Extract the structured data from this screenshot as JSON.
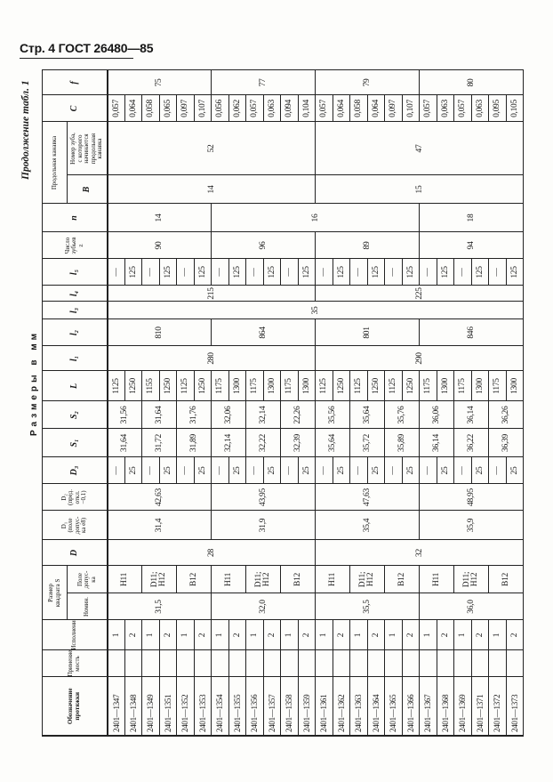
{
  "page_header": "Стр. 4 ГОСТ 26480—85",
  "continuation": "Продолжение табл. 1",
  "units": "Размеры в мм",
  "table": {
    "headers": {
      "designation": "Обозначение\nпротяжки",
      "application": "Применяе-\nмость",
      "version": "Исполнение",
      "s_group": "Размер\nквадрата S",
      "s_nom": "Номин.",
      "s_tol": "Поле\nдопус-\nка",
      "d": "D",
      "d1": "D₁\n(поле\nдопус-\nка e8)",
      "d2": "D₂\n(пред.\nоткл.\n−0,1)",
      "d3": "D₃",
      "s1": "S₁",
      "s2": "S₂",
      "L": "L",
      "l1": "l₁",
      "l2": "l₂",
      "l3": "l₃",
      "l4": "l₄",
      "l5": "l₅",
      "z": "Число\nзубьев\nz",
      "n": "n",
      "groove_group": "Продольная канавка",
      "B": "B",
      "tooth": "Номер зуба,\nс которого\nначинается\nпродольная\nканавка",
      "C": "C",
      "f": "f"
    },
    "columns": [
      "designation",
      "application",
      "version",
      "s_nom",
      "s_tol",
      "d",
      "d1",
      "d2",
      "d3",
      "s1",
      "s2",
      "L",
      "l1",
      "l2",
      "l3",
      "l4",
      "l5",
      "z",
      "n",
      "B",
      "tooth",
      "C",
      "f"
    ],
    "data": {
      "designation": [
        [
          "2401—1347",
          1
        ],
        [
          "2401—1348",
          1
        ],
        [
          "2401—1349",
          1
        ],
        [
          "2401—1351",
          1
        ],
        [
          "2401—1352",
          1
        ],
        [
          "2401—1353",
          1
        ],
        [
          "2401—1354",
          1
        ],
        [
          "2401—1355",
          1
        ],
        [
          "2401—1356",
          1
        ],
        [
          "2401—1357",
          1
        ],
        [
          "2401—1358",
          1
        ],
        [
          "2401—1359",
          1
        ],
        [
          "2401—1361",
          1
        ],
        [
          "2401—1362",
          1
        ],
        [
          "2401—1363",
          1
        ],
        [
          "2401—1364",
          1
        ],
        [
          "2401—1365",
          1
        ],
        [
          "2401—1366",
          1
        ],
        [
          "2401—1367",
          1
        ],
        [
          "2401—1368",
          1
        ],
        [
          "2401—1369",
          1
        ],
        [
          "2401—1371",
          1
        ],
        [
          "2401—1372",
          1
        ],
        [
          "2401—1373",
          1
        ]
      ],
      "application": [
        [
          "",
          1
        ],
        [
          "",
          1
        ],
        [
          "",
          1
        ],
        [
          "",
          1
        ],
        [
          "",
          1
        ],
        [
          "",
          1
        ],
        [
          "",
          1
        ],
        [
          "",
          1
        ],
        [
          "",
          1
        ],
        [
          "",
          1
        ],
        [
          "",
          1
        ],
        [
          "",
          1
        ],
        [
          "",
          1
        ],
        [
          "",
          1
        ],
        [
          "",
          1
        ],
        [
          "",
          1
        ],
        [
          "",
          1
        ],
        [
          "",
          1
        ],
        [
          "",
          1
        ],
        [
          "",
          1
        ],
        [
          "",
          1
        ],
        [
          "",
          1
        ],
        [
          "",
          1
        ],
        [
          "",
          1
        ]
      ],
      "version": [
        [
          "1",
          1
        ],
        [
          "2",
          1
        ],
        [
          "1",
          1
        ],
        [
          "2",
          1
        ],
        [
          "1",
          1
        ],
        [
          "2",
          1
        ],
        [
          "1",
          1
        ],
        [
          "2",
          1
        ],
        [
          "1",
          1
        ],
        [
          "2",
          1
        ],
        [
          "1",
          1
        ],
        [
          "2",
          1
        ],
        [
          "1",
          1
        ],
        [
          "2",
          1
        ],
        [
          "1",
          1
        ],
        [
          "2",
          1
        ],
        [
          "1",
          1
        ],
        [
          "2",
          1
        ],
        [
          "1",
          1
        ],
        [
          "2",
          1
        ],
        [
          "1",
          1
        ],
        [
          "2",
          1
        ],
        [
          "1",
          1
        ],
        [
          "2",
          1
        ]
      ],
      "s_nom": [
        [
          "31,5",
          6
        ],
        [
          "32,0",
          6
        ],
        [
          "35,5",
          6
        ],
        [
          "36,0",
          6
        ]
      ],
      "s_tol": [
        [
          "H11",
          2
        ],
        [
          "D11;\nH12",
          2
        ],
        [
          "B12",
          2
        ],
        [
          "H11",
          2
        ],
        [
          "D11;\nH12",
          2
        ],
        [
          "B12",
          2
        ],
        [
          "H11",
          2
        ],
        [
          "D11;\nH12",
          2
        ],
        [
          "B12",
          2
        ],
        [
          "H11",
          2
        ],
        [
          "D11;\nH12",
          2
        ],
        [
          "B12",
          2
        ]
      ],
      "d": [
        [
          "28",
          12
        ],
        [
          "32",
          12
        ]
      ],
      "d1": [
        [
          "31,4",
          6
        ],
        [
          "31,9",
          6
        ],
        [
          "35,4",
          6
        ],
        [
          "35,9",
          6
        ]
      ],
      "d2": [
        [
          "42,63",
          6
        ],
        [
          "43,95",
          6
        ],
        [
          "47,63",
          6
        ],
        [
          "48,95",
          6
        ]
      ],
      "d3": [
        [
          "—",
          1
        ],
        [
          "25",
          1
        ],
        [
          "—",
          1
        ],
        [
          "25",
          1
        ],
        [
          "—",
          1
        ],
        [
          "25",
          1
        ],
        [
          "—",
          1
        ],
        [
          "25",
          1
        ],
        [
          "—",
          1
        ],
        [
          "25",
          1
        ],
        [
          "—",
          1
        ],
        [
          "25",
          1
        ],
        [
          "—",
          1
        ],
        [
          "25",
          1
        ],
        [
          "—",
          1
        ],
        [
          "25",
          1
        ],
        [
          "—",
          1
        ],
        [
          "25",
          1
        ],
        [
          "—",
          1
        ],
        [
          "25",
          1
        ],
        [
          "—",
          1
        ],
        [
          "25",
          1
        ],
        [
          "—",
          1
        ],
        [
          "25",
          1
        ]
      ],
      "s1": [
        [
          "31,64",
          2
        ],
        [
          "31,72",
          2
        ],
        [
          "31,89",
          2
        ],
        [
          "32,14",
          2
        ],
        [
          "32,22",
          2
        ],
        [
          "32,39",
          2
        ],
        [
          "35,64",
          2
        ],
        [
          "35,72",
          2
        ],
        [
          "35,89",
          2
        ],
        [
          "36,14",
          2
        ],
        [
          "36,22",
          2
        ],
        [
          "36,39",
          2
        ]
      ],
      "s2": [
        [
          "31,56",
          2
        ],
        [
          "31,64",
          2
        ],
        [
          "31,76",
          2
        ],
        [
          "32,06",
          2
        ],
        [
          "32,14",
          2
        ],
        [
          "22,26",
          2
        ],
        [
          "35,56",
          2
        ],
        [
          "35,64",
          2
        ],
        [
          "35,76",
          2
        ],
        [
          "36,06",
          2
        ],
        [
          "36,14",
          2
        ],
        [
          "36,26",
          2
        ]
      ],
      "L": [
        [
          "1125",
          1
        ],
        [
          "1250",
          1
        ],
        [
          "1155",
          1
        ],
        [
          "1250",
          1
        ],
        [
          "1125",
          1
        ],
        [
          "1250",
          1
        ],
        [
          "1175",
          1
        ],
        [
          "1300",
          1
        ],
        [
          "1175",
          1
        ],
        [
          "1300",
          1
        ],
        [
          "1175",
          1
        ],
        [
          "1300",
          1
        ],
        [
          "1125",
          1
        ],
        [
          "1250",
          1
        ],
        [
          "1125",
          1
        ],
        [
          "1250",
          1
        ],
        [
          "1125",
          1
        ],
        [
          "1250",
          1
        ],
        [
          "1175",
          1
        ],
        [
          "1300",
          1
        ],
        [
          "1175",
          1
        ],
        [
          "1300",
          1
        ],
        [
          "1175",
          1
        ],
        [
          "1300",
          1
        ]
      ],
      "l1": [
        [
          "280",
          12
        ],
        [
          "290",
          12
        ]
      ],
      "l2": [
        [
          "810",
          6
        ],
        [
          "864",
          6
        ],
        [
          "801",
          6
        ],
        [
          "846",
          6
        ]
      ],
      "l3": [
        [
          "35",
          24
        ]
      ],
      "l4": [
        [
          "215",
          12
        ],
        [
          "225",
          12
        ]
      ],
      "l5": [
        [
          "—",
          1
        ],
        [
          "125",
          1
        ],
        [
          "—",
          1
        ],
        [
          "125",
          1
        ],
        [
          "—",
          1
        ],
        [
          "125",
          1
        ],
        [
          "—",
          1
        ],
        [
          "125",
          1
        ],
        [
          "—",
          1
        ],
        [
          "125",
          1
        ],
        [
          "—",
          1
        ],
        [
          "125",
          1
        ],
        [
          "—",
          1
        ],
        [
          "125",
          1
        ],
        [
          "—",
          1
        ],
        [
          "125",
          1
        ],
        [
          "—",
          1
        ],
        [
          "125",
          1
        ],
        [
          "—",
          1
        ],
        [
          "125",
          1
        ],
        [
          "—",
          1
        ],
        [
          "125",
          1
        ],
        [
          "—",
          1
        ],
        [
          "125",
          1
        ]
      ],
      "z": [
        [
          "90",
          6
        ],
        [
          "96",
          6
        ],
        [
          "89",
          6
        ],
        [
          "94",
          6
        ]
      ],
      "n": [
        [
          "14",
          6
        ],
        [
          "16",
          12
        ],
        [
          "18",
          6
        ]
      ],
      "B": [
        [
          "14",
          12
        ],
        [
          "15",
          12
        ]
      ],
      "tooth": [
        [
          "52",
          12
        ],
        [
          "47",
          12
        ]
      ],
      "C": [
        [
          "0,057",
          1
        ],
        [
          "0,064",
          1
        ],
        [
          "0,058",
          1
        ],
        [
          "0,065",
          1
        ],
        [
          "0,097",
          1
        ],
        [
          "0,107",
          1
        ],
        [
          "0,056",
          1
        ],
        [
          "0,062",
          1
        ],
        [
          "0,057",
          1
        ],
        [
          "0,063",
          1
        ],
        [
          "0,094",
          1
        ],
        [
          "0,104",
          1
        ],
        [
          "0,057",
          1
        ],
        [
          "0,064",
          1
        ],
        [
          "0,058",
          1
        ],
        [
          "0,064",
          1
        ],
        [
          "0,097",
          1
        ],
        [
          "0,107",
          1
        ],
        [
          "0,057",
          1
        ],
        [
          "0,063",
          1
        ],
        [
          "0,057",
          1
        ],
        [
          "0,063",
          1
        ],
        [
          "0,095",
          1
        ],
        [
          "0,105",
          1
        ]
      ],
      "f": [
        [
          "75",
          6
        ],
        [
          "77",
          6
        ],
        [
          "79",
          6
        ],
        [
          "80",
          6
        ]
      ]
    }
  }
}
